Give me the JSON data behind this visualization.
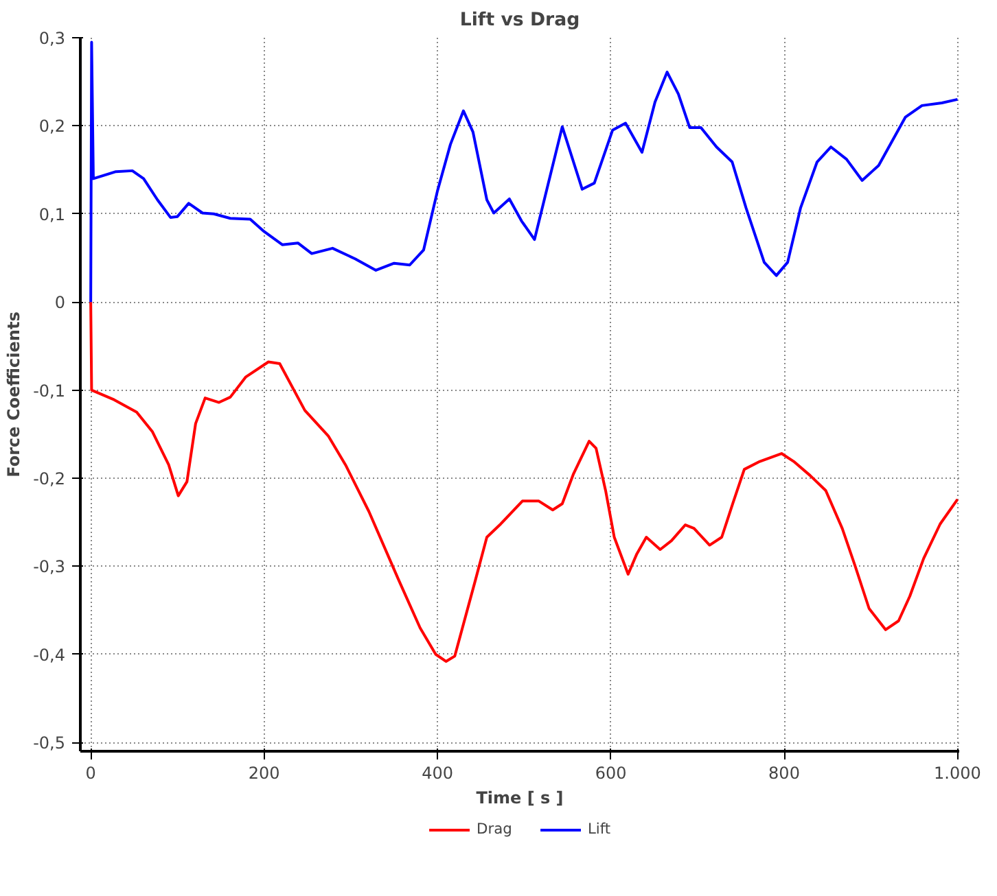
{
  "chart_data": {
    "type": "line",
    "title": "Lift vs Drag",
    "xlabel": "Time [ s ]",
    "ylabel": "Force Coefficients",
    "xlim": [
      -12,
      1002
    ],
    "ylim": [
      -0.51,
      0.3
    ],
    "xticks": [
      0,
      200,
      400,
      600,
      800,
      {
        "value": 1000,
        "label": "1.000"
      }
    ],
    "yticks": [
      {
        "value": 0.3,
        "label": "0,3"
      },
      {
        "value": 0.2,
        "label": "0,2"
      },
      {
        "value": 0.1,
        "label": "0,1"
      },
      0,
      {
        "value": -0.1,
        "label": "-0,1"
      },
      {
        "value": -0.2,
        "label": "-0,2"
      },
      {
        "value": -0.3,
        "label": "-0,3"
      },
      {
        "value": -0.4,
        "label": "-0,4"
      },
      {
        "value": -0.5,
        "label": "-0,5"
      }
    ],
    "grid": true,
    "legend": "bottom",
    "marker": "none",
    "line_style": "solid",
    "series": [
      {
        "name": "Drag",
        "color": "#ff0000",
        "x": [
          0,
          1,
          27,
          53,
          71,
          90,
          101,
          111,
          121,
          132,
          148,
          161,
          179,
          205,
          218,
          247,
          274,
          294,
          321,
          355,
          380,
          398,
          410,
          420,
          444,
          457,
          473,
          498,
          517,
          533,
          544,
          557,
          575,
          583,
          594,
          604,
          620,
          630,
          641,
          657,
          670,
          686,
          696,
          714,
          728,
          741,
          754,
          772,
          797,
          811,
          830,
          848,
          867,
          882,
          898,
          917,
          932,
          945,
          961,
          980,
          1000
        ],
        "values": [
          0,
          -0.1,
          -0.111,
          -0.125,
          -0.147,
          -0.185,
          -0.22,
          -0.204,
          -0.138,
          -0.109,
          -0.114,
          -0.108,
          -0.085,
          -0.068,
          -0.07,
          -0.123,
          -0.152,
          -0.185,
          -0.238,
          -0.315,
          -0.37,
          -0.4,
          -0.408,
          -0.402,
          -0.315,
          -0.267,
          -0.252,
          -0.226,
          -0.226,
          -0.236,
          -0.229,
          -0.195,
          -0.158,
          -0.166,
          -0.214,
          -0.267,
          -0.309,
          -0.286,
          -0.267,
          -0.281,
          -0.271,
          -0.253,
          -0.257,
          -0.276,
          -0.267,
          -0.228,
          -0.19,
          -0.181,
          -0.172,
          -0.181,
          -0.197,
          -0.214,
          -0.257,
          -0.3,
          -0.348,
          -0.372,
          -0.362,
          -0.334,
          -0.291,
          -0.252,
          -0.224
        ]
      },
      {
        "name": "Lift",
        "color": "#0000ff",
        "x": [
          0,
          1,
          3,
          29,
          48,
          61,
          77,
          92,
          100,
          113,
          129,
          142,
          161,
          184,
          200,
          221,
          239,
          255,
          279,
          305,
          329,
          350,
          368,
          384,
          400,
          415,
          430,
          441,
          457,
          465,
          483,
          497,
          512,
          528,
          544,
          567,
          581,
          602,
          617,
          636,
          651,
          665,
          678,
          691,
          704,
          722,
          740,
          756,
          777,
          791,
          804,
          819,
          838,
          854,
          872,
          890,
          909,
          940,
          959,
          982,
          1000
        ],
        "values": [
          0,
          0.295,
          0.14,
          0.148,
          0.149,
          0.14,
          0.116,
          0.096,
          0.097,
          0.112,
          0.101,
          0.1,
          0.095,
          0.094,
          0.08,
          0.065,
          0.067,
          0.055,
          0.061,
          0.049,
          0.036,
          0.044,
          0.042,
          0.059,
          0.126,
          0.179,
          0.217,
          0.193,
          0.116,
          0.101,
          0.117,
          0.092,
          0.071,
          0.135,
          0.199,
          0.128,
          0.135,
          0.195,
          0.203,
          0.17,
          0.227,
          0.261,
          0.236,
          0.198,
          0.198,
          0.176,
          0.159,
          0.107,
          0.045,
          0.03,
          0.045,
          0.107,
          0.159,
          0.176,
          0.162,
          0.138,
          0.155,
          0.21,
          0.223,
          0.226,
          0.23
        ]
      }
    ]
  }
}
